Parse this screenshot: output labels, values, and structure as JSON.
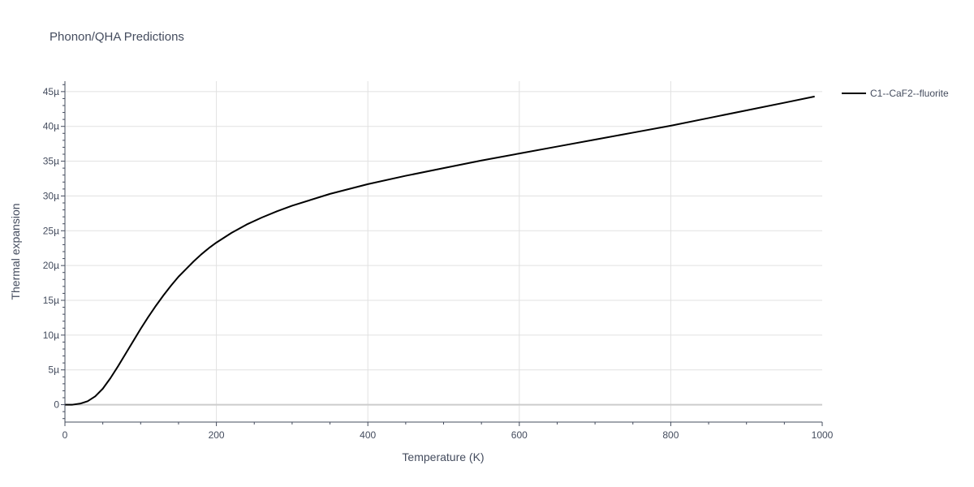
{
  "chart_data": {
    "type": "line",
    "title": "Phonon/QHA Predictions",
    "xlabel": "Temperature (K)",
    "ylabel": "Thermal expansion",
    "xlim": [
      0,
      1000
    ],
    "ylim": [
      -2.5,
      46.5
    ],
    "x_ticks": [
      0,
      200,
      400,
      600,
      800,
      1000
    ],
    "x_tick_labels": [
      "0",
      "200",
      "400",
      "600",
      "800",
      "1000"
    ],
    "y_ticks": [
      0,
      5,
      10,
      15,
      20,
      25,
      30,
      35,
      40,
      45
    ],
    "y_tick_labels": [
      "0",
      "5µ",
      "10µ",
      "15µ",
      "20µ",
      "25µ",
      "30µ",
      "35µ",
      "40µ",
      "45µ"
    ],
    "y_unit_scale": "1e-6",
    "grid": true,
    "legend_position": "top-right, outside plot",
    "colors": {
      "series": "#000000",
      "grid": "#e1e1e1",
      "zero_line": "#cccccc",
      "text": "#444c5e"
    },
    "series": [
      {
        "name": "C1--CaF2--fluorite",
        "x": [
          0,
          10,
          20,
          30,
          40,
          50,
          60,
          70,
          80,
          90,
          100,
          110,
          120,
          130,
          140,
          150,
          160,
          170,
          180,
          190,
          200,
          220,
          240,
          260,
          280,
          300,
          350,
          400,
          450,
          500,
          550,
          600,
          650,
          700,
          750,
          800,
          850,
          900,
          950,
          990
        ],
        "values": [
          0,
          0,
          0.15,
          0.5,
          1.2,
          2.3,
          3.8,
          5.5,
          7.3,
          9.1,
          10.9,
          12.6,
          14.2,
          15.7,
          17.1,
          18.4,
          19.5,
          20.6,
          21.6,
          22.5,
          23.3,
          24.7,
          25.9,
          26.9,
          27.8,
          28.6,
          30.3,
          31.7,
          32.9,
          34.0,
          35.1,
          36.1,
          37.1,
          38.1,
          39.1,
          40.1,
          41.2,
          42.3,
          43.4,
          44.3
        ]
      }
    ]
  }
}
